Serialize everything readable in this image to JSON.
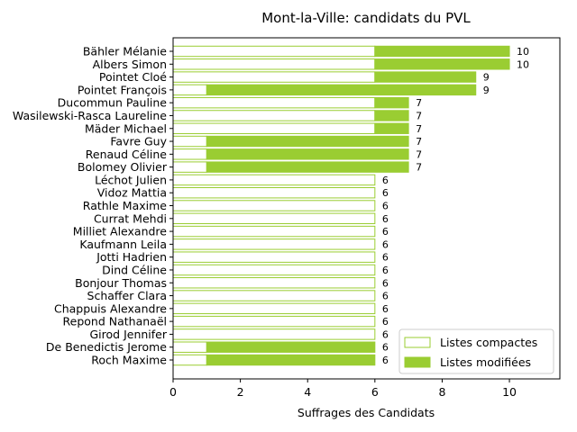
{
  "chart_data": {
    "type": "bar",
    "orientation": "horizontal",
    "stacked": true,
    "title": "Mont-la-Ville: candidats du PVL",
    "xlabel": "Suffrages des Candidats",
    "ylabel": "",
    "xlim": [
      0,
      11.5
    ],
    "x_ticks": [
      0,
      2,
      4,
      6,
      8,
      10
    ],
    "grid": false,
    "legend_position": "bottom-right",
    "categories": [
      "Bähler Mélanie",
      "Albers Simon",
      "Pointet Cloé",
      "Pointet François",
      "Ducommun Pauline",
      "Wasilewski-Rasca Laureline",
      "Mäder Michael",
      "Favre Guy",
      "Renaud Céline",
      "Bolomey Olivier",
      "Léchot Julien",
      "Vidoz Mattia",
      "Rathle Maxime",
      "Currat Mehdi",
      "Milliet Alexandre",
      "Kaufmann Leila",
      "Jotti Hadrien",
      "Dind Céline",
      "Bonjour Thomas",
      "Schaffer Clara",
      "Chappuis Alexandre",
      "Repond Nathanaël",
      "Girod Jennifer",
      "De Benedictis Jerome",
      "Roch Maxime"
    ],
    "series": [
      {
        "name": "Listes compactes",
        "color": "#9acd32",
        "style": "outline",
        "values": [
          6,
          6,
          6,
          1,
          6,
          6,
          6,
          1,
          1,
          1,
          6,
          6,
          6,
          6,
          6,
          6,
          6,
          6,
          6,
          6,
          6,
          6,
          6,
          1,
          1
        ]
      },
      {
        "name": "Listes modifiées",
        "color": "#9acd32",
        "style": "filled",
        "values": [
          4,
          4,
          3,
          8,
          1,
          1,
          1,
          6,
          6,
          6,
          0,
          0,
          0,
          0,
          0,
          0,
          0,
          0,
          0,
          0,
          0,
          0,
          0,
          5,
          5
        ]
      }
    ],
    "totals": [
      10,
      10,
      9,
      9,
      7,
      7,
      7,
      7,
      7,
      7,
      6,
      6,
      6,
      6,
      6,
      6,
      6,
      6,
      6,
      6,
      6,
      6,
      6,
      6,
      6
    ]
  }
}
